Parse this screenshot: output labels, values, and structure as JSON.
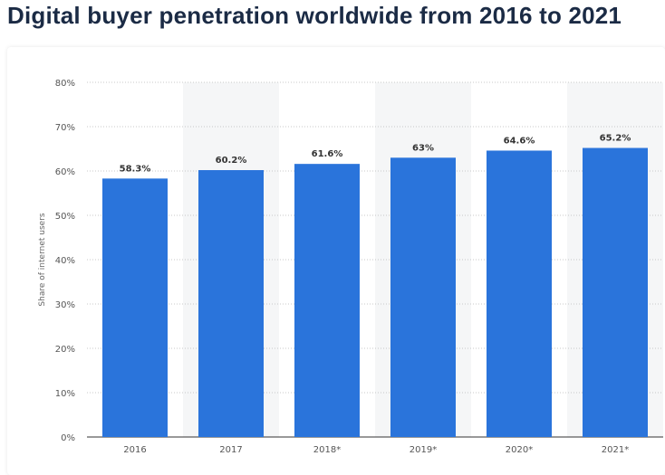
{
  "title": "Digital buyer penetration worldwide from 2016 to 2021",
  "chart_data": {
    "type": "bar",
    "title": "Digital buyer penetration worldwide from 2016 to 2021",
    "categories": [
      "2016",
      "2017",
      "2018*",
      "2019*",
      "2020*",
      "2021*"
    ],
    "values": [
      58.3,
      60.2,
      61.6,
      63,
      64.6,
      65.2
    ],
    "data_labels": [
      "58.3%",
      "60.2%",
      "61.6%",
      "63%",
      "64.6%",
      "65.2%"
    ],
    "xlabel": "",
    "ylabel": "Share of internet users",
    "ylim": [
      0,
      80
    ],
    "yticks": [
      0,
      10,
      20,
      30,
      40,
      50,
      60,
      70,
      80
    ],
    "ytick_labels": [
      "0%",
      "10%",
      "20%",
      "30%",
      "40%",
      "50%",
      "60%",
      "70%",
      "80%"
    ],
    "grid": true,
    "bar_color": "#2a74db",
    "band_color": "#f5f6f7"
  }
}
